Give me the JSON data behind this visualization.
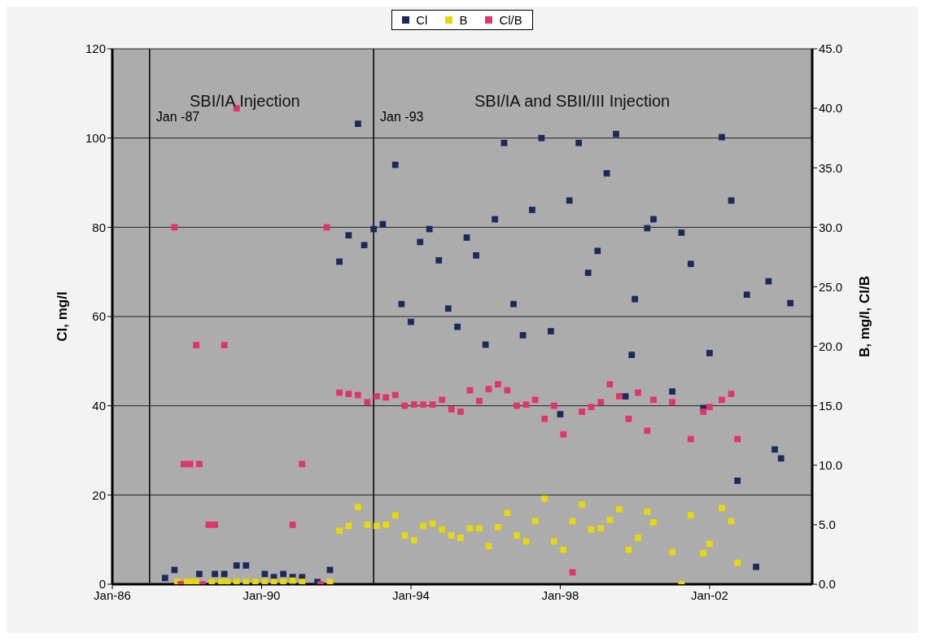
{
  "chart_data": {
    "type": "scatter",
    "xlabel": null,
    "ylabel": "Cl, mg/l",
    "y2label": "B, mg/l,  Cl/B",
    "annotations": [
      "SBI/IA Injection",
      "SBI/IA and SBII/III Injection"
    ],
    "xlim": [
      "1986-01",
      "2004-10"
    ],
    "xticks": [
      {
        "value": "1986-01",
        "label": "Jan-86"
      },
      {
        "value": "1990-01",
        "label": "Jan-90"
      },
      {
        "value": "1994-01",
        "label": "Jan-94"
      },
      {
        "value": "1998-01",
        "label": "Jan-98"
      },
      {
        "value": "2002-01",
        "label": "Jan-02"
      }
    ],
    "ylim": [
      0,
      120
    ],
    "yticks": [
      0,
      20,
      40,
      60,
      80,
      100,
      120
    ],
    "y2lim": [
      0,
      45
    ],
    "y2ticks": [
      {
        "value": 0,
        "label": "0.0"
      },
      {
        "value": 5,
        "label": "5.0"
      },
      {
        "value": 10,
        "label": "10.0"
      },
      {
        "value": 15,
        "label": "15.0"
      },
      {
        "value": 20,
        "label": "20.0"
      },
      {
        "value": 25,
        "label": "25.0"
      },
      {
        "value": 30,
        "label": "30.0"
      },
      {
        "value": 35,
        "label": "35.0"
      },
      {
        "value": 40,
        "label": "40.0"
      },
      {
        "value": 45,
        "label": "45.0"
      }
    ],
    "grid": "y",
    "legend": "top",
    "marker": "square",
    "ref_lines": [
      {
        "axis": "x",
        "value": "1987-01",
        "label": "Jan -87",
        "color": "#000000"
      },
      {
        "axis": "x",
        "value": "1993-01",
        "label": "Jan -93",
        "color": "#000000"
      }
    ],
    "series": [
      {
        "name": "Cl",
        "color": "#1b2a5c",
        "x": [
          "1987-06",
          "1987-09",
          "1988-05",
          "1988-10",
          "1989-01",
          "1989-05",
          "1989-08",
          "1990-02",
          "1990-05",
          "1990-08",
          "1990-11",
          "1991-02",
          "1991-07",
          "1991-11",
          "1992-02",
          "1992-05",
          "1992-08",
          "1992-10",
          "1993-01",
          "1993-04",
          "1993-08",
          "1993-10",
          "1994-01",
          "1994-04",
          "1994-07",
          "1994-10",
          "1995-01",
          "1995-04",
          "1995-07",
          "1995-10",
          "1996-01",
          "1996-04",
          "1996-07",
          "1996-10",
          "1997-01",
          "1997-04",
          "1997-07",
          "1997-10",
          "1998-01",
          "1998-04",
          "1998-07",
          "1998-10",
          "1999-01",
          "1999-04",
          "1999-07",
          "1999-10",
          "1999-12",
          "2000-01",
          "2000-05",
          "2000-07",
          "2001-01",
          "2001-04",
          "2001-07",
          "2001-11",
          "2002-01",
          "2002-05",
          "2002-08",
          "2002-10",
          "2003-01",
          "2003-04",
          "2003-08",
          "2003-10",
          "2003-12",
          "2004-03"
        ],
        "values": [
          1.4,
          3.2,
          2.3,
          2.3,
          2.3,
          4.2,
          4.2,
          2.3,
          1.6,
          2.3,
          1.6,
          1.6,
          0.5,
          3.2,
          72.3,
          78.2,
          103.2,
          76,
          79.6,
          80.7,
          94,
          62.8,
          58.8,
          76.7,
          79.6,
          72.6,
          61.8,
          57.7,
          77.7,
          73.7,
          53.7,
          81.8,
          98.9,
          62.8,
          55.8,
          83.9,
          100,
          56.7,
          38.1,
          86,
          98.9,
          69.8,
          74.7,
          92.1,
          100.9,
          42.1,
          51.4,
          63.9,
          79.8,
          81.8,
          43.2,
          78.8,
          71.8,
          39.5,
          51.8,
          100.2,
          86,
          23.2,
          64.9,
          3.9,
          67.9,
          30.2,
          28.2,
          63
        ]
      },
      {
        "name": "B",
        "color": "#e8d80a",
        "axis": "y2",
        "x": [
          "1987-10",
          "1988-01",
          "1988-02",
          "1988-04",
          "1988-09",
          "1988-12",
          "1989-02",
          "1989-05",
          "1989-08",
          "1989-11",
          "1990-02",
          "1990-05",
          "1990-08",
          "1990-11",
          "1991-02",
          "1991-11",
          "1992-02",
          "1992-05",
          "1992-08",
          "1992-11",
          "1993-02",
          "1993-05",
          "1993-08",
          "1993-11",
          "1994-02",
          "1994-05",
          "1994-08",
          "1994-11",
          "1995-02",
          "1995-05",
          "1995-08",
          "1995-11",
          "1996-02",
          "1996-05",
          "1996-08",
          "1996-11",
          "1997-02",
          "1997-05",
          "1997-08",
          "1997-11",
          "1998-02",
          "1998-05",
          "1998-08",
          "1998-11",
          "1999-02",
          "1999-05",
          "1999-08",
          "1999-11",
          "2000-02",
          "2000-05",
          "2000-07",
          "2001-01",
          "2001-04",
          "2001-07",
          "2001-11",
          "2002-01",
          "2002-05",
          "2002-08",
          "2002-10"
        ],
        "values": [
          0.2,
          0.2,
          0.2,
          0.2,
          0.2,
          0.2,
          0.2,
          0.2,
          0.2,
          0.2,
          0.2,
          0.2,
          0.2,
          0.3,
          0.2,
          0.2,
          4.5,
          4.9,
          6.5,
          5.0,
          4.9,
          5.0,
          5.8,
          4.1,
          3.7,
          4.9,
          5.1,
          4.6,
          4.1,
          3.9,
          4.7,
          4.7,
          3.2,
          4.8,
          6.0,
          4.1,
          3.6,
          5.3,
          7.2,
          3.6,
          2.9,
          5.3,
          6.7,
          4.6,
          4.7,
          5.4,
          6.3,
          2.9,
          3.9,
          6.1,
          5.2,
          2.7,
          0,
          5.8,
          2.6,
          3.4,
          6.4,
          5.3,
          1.8
        ]
      },
      {
        "name": "Cl/B",
        "color": "#e0356a",
        "axis": "y2",
        "x": [
          "1987-09",
          "1987-11",
          "1987-12",
          "1988-02",
          "1988-04",
          "1988-05",
          "1988-06",
          "1988-08",
          "1988-10",
          "1989-01",
          "1989-05",
          "1990-11",
          "1991-02",
          "1991-08",
          "1991-10",
          "1992-02",
          "1992-05",
          "1992-08",
          "1992-11",
          "1993-02",
          "1993-05",
          "1993-08",
          "1993-11",
          "1994-02",
          "1994-05",
          "1994-08",
          "1994-11",
          "1995-02",
          "1995-05",
          "1995-08",
          "1995-11",
          "1996-02",
          "1996-05",
          "1996-08",
          "1996-11",
          "1997-02",
          "1997-05",
          "1997-08",
          "1997-11",
          "1998-02",
          "1998-05",
          "1998-08",
          "1998-11",
          "1999-02",
          "1999-05",
          "1999-08",
          "1999-11",
          "2000-02",
          "2000-05",
          "2000-07",
          "2001-01",
          "2001-07",
          "2001-11",
          "2002-01",
          "2002-05",
          "2002-08",
          "2002-10"
        ],
        "values": [
          30,
          0,
          10.1,
          10.1,
          20.1,
          10.1,
          0,
          5,
          5,
          20.1,
          40,
          5,
          10.1,
          0,
          30,
          16.1,
          16,
          15.9,
          15.3,
          15.8,
          15.7,
          15.9,
          15,
          15.1,
          15.1,
          15.1,
          15.5,
          14.7,
          14.5,
          16.3,
          15.4,
          16.4,
          16.8,
          16.3,
          15,
          15.1,
          15.5,
          13.9,
          15,
          12.6,
          1,
          14.5,
          14.9,
          15.3,
          16.8,
          15.8,
          13.9,
          16.1,
          12.9,
          15.5,
          15.3,
          12.2,
          14.5,
          14.9,
          15.5,
          16,
          12.2
        ]
      }
    ]
  }
}
